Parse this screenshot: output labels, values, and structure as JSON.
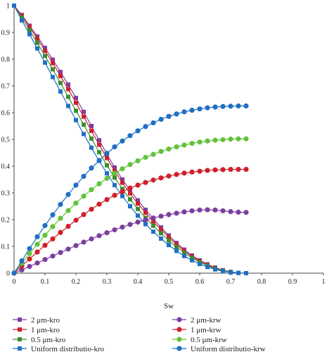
{
  "chart_data": {
    "type": "line",
    "xlabel": "Sw",
    "ylabel": "",
    "xlim": [
      0,
      1
    ],
    "ylim": [
      0,
      1
    ],
    "xticks": [
      "0",
      "0.1",
      "0.2",
      "0.3",
      "0.4",
      "0.5",
      "0.6",
      "0.7",
      "0.8",
      "0.9",
      "1"
    ],
    "yticks": [
      "0",
      "0.1",
      "0.2",
      "0.3",
      "0.4",
      "0.5",
      "0.6",
      "0.7",
      "0.8",
      "0.9",
      "1"
    ],
    "grid": false,
    "legend_position": "bottom",
    "x": [
      0,
      0.025,
      0.05,
      0.075,
      0.1,
      0.125,
      0.15,
      0.175,
      0.2,
      0.225,
      0.25,
      0.275,
      0.3,
      0.325,
      0.35,
      0.375,
      0.4,
      0.425,
      0.45,
      0.475,
      0.5,
      0.525,
      0.55,
      0.575,
      0.6,
      0.625,
      0.65,
      0.675,
      0.7,
      0.725,
      0.75
    ],
    "series": [
      {
        "name": "2 μm-kro",
        "color": "#7b3fa0",
        "marker": "square",
        "values": [
          1.0,
          0.965,
          0.925,
          0.885,
          0.842,
          0.798,
          0.752,
          0.705,
          0.655,
          0.603,
          0.55,
          0.497,
          0.445,
          0.395,
          0.35,
          0.31,
          0.272,
          0.237,
          0.203,
          0.171,
          0.141,
          0.113,
          0.088,
          0.066,
          0.048,
          0.033,
          0.021,
          0.011,
          0.005,
          0.001,
          0.0
        ]
      },
      {
        "name": "1 μm-kro",
        "color": "#d0202a",
        "marker": "square",
        "values": [
          1.0,
          0.962,
          0.92,
          0.877,
          0.831,
          0.785,
          0.737,
          0.688,
          0.637,
          0.585,
          0.532,
          0.48,
          0.43,
          0.382,
          0.338,
          0.298,
          0.26,
          0.226,
          0.193,
          0.163,
          0.134,
          0.107,
          0.083,
          0.062,
          0.045,
          0.031,
          0.019,
          0.01,
          0.004,
          0.001,
          0.0
        ]
      },
      {
        "name": "0.5 μm-kro",
        "color": "#3a8e30",
        "marker": "square",
        "values": [
          1.0,
          0.955,
          0.908,
          0.861,
          0.812,
          0.762,
          0.711,
          0.659,
          0.607,
          0.555,
          0.503,
          0.452,
          0.403,
          0.357,
          0.315,
          0.276,
          0.24,
          0.207,
          0.177,
          0.149,
          0.122,
          0.098,
          0.076,
          0.057,
          0.041,
          0.028,
          0.017,
          0.009,
          0.004,
          0.001,
          0.0
        ]
      },
      {
        "name": "Uniform distributio-kro",
        "color": "#1f6fc4",
        "marker": "square",
        "values": [
          1.0,
          0.945,
          0.893,
          0.84,
          0.787,
          0.733,
          0.679,
          0.625,
          0.572,
          0.52,
          0.469,
          0.42,
          0.373,
          0.329,
          0.288,
          0.25,
          0.215,
          0.183,
          0.155,
          0.129,
          0.105,
          0.083,
          0.064,
          0.048,
          0.034,
          0.023,
          0.014,
          0.007,
          0.003,
          0.001,
          0.0
        ]
      },
      {
        "name": "2 μm-krw",
        "color": "#7b3fa0",
        "marker": "circle",
        "values": [
          0.0,
          0.012,
          0.025,
          0.038,
          0.051,
          0.064,
          0.077,
          0.09,
          0.103,
          0.116,
          0.128,
          0.14,
          0.151,
          0.162,
          0.172,
          0.182,
          0.191,
          0.199,
          0.206,
          0.213,
          0.219,
          0.224,
          0.229,
          0.233,
          0.236,
          0.237,
          0.236,
          0.233,
          0.23,
          0.228,
          0.227
        ]
      },
      {
        "name": "1 μm-krw",
        "color": "#d0202a",
        "marker": "circle",
        "values": [
          0.0,
          0.027,
          0.053,
          0.079,
          0.104,
          0.128,
          0.152,
          0.175,
          0.198,
          0.219,
          0.239,
          0.258,
          0.275,
          0.291,
          0.305,
          0.318,
          0.329,
          0.339,
          0.348,
          0.356,
          0.363,
          0.369,
          0.374,
          0.378,
          0.381,
          0.384,
          0.386,
          0.387,
          0.388,
          0.388,
          0.388
        ]
      },
      {
        "name": "0.5 μm-krw",
        "color": "#62c23a",
        "marker": "circle",
        "values": [
          0.0,
          0.037,
          0.073,
          0.108,
          0.142,
          0.174,
          0.205,
          0.234,
          0.262,
          0.288,
          0.312,
          0.334,
          0.354,
          0.373,
          0.39,
          0.406,
          0.42,
          0.433,
          0.444,
          0.455,
          0.464,
          0.472,
          0.479,
          0.485,
          0.49,
          0.494,
          0.497,
          0.499,
          0.501,
          0.502,
          0.502
        ]
      },
      {
        "name": "Uniform distributio-krw",
        "color": "#1f6fc4",
        "marker": "circle",
        "values": [
          0.0,
          0.046,
          0.092,
          0.136,
          0.178,
          0.218,
          0.257,
          0.294,
          0.329,
          0.362,
          0.393,
          0.421,
          0.448,
          0.472,
          0.494,
          0.514,
          0.532,
          0.548,
          0.562,
          0.575,
          0.586,
          0.595,
          0.603,
          0.609,
          0.614,
          0.618,
          0.621,
          0.623,
          0.624,
          0.625,
          0.625
        ]
      }
    ]
  }
}
